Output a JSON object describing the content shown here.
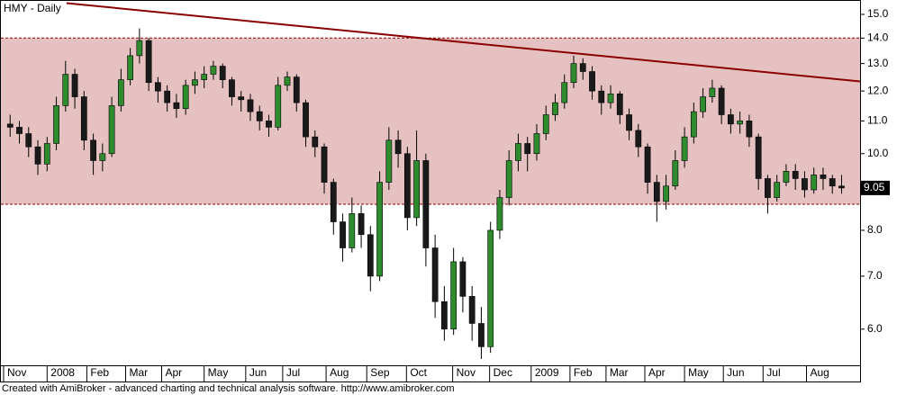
{
  "chart_data": {
    "type": "candlestick",
    "title": "HMY - Daily",
    "footer": "Created with AmiBroker - advanced charting and technical analysis software. http://www.amibroker.com",
    "log_scale": true,
    "grid": false,
    "up_color": "#2e8b2e",
    "down_color": "#1a1a1a",
    "ylim": [
      5.4,
      15.6
    ],
    "yticks": [
      {
        "value": 6,
        "label": "6.0"
      },
      {
        "value": 7,
        "label": "7.0"
      },
      {
        "value": 8,
        "label": "8.0"
      },
      {
        "value": 9,
        "label": "9.0"
      },
      {
        "value": 10,
        "label": "10.0"
      },
      {
        "value": 11,
        "label": "11.0"
      },
      {
        "value": 12,
        "label": "12.0"
      },
      {
        "value": 13,
        "label": "13.0"
      },
      {
        "value": 14,
        "label": "14.0"
      },
      {
        "value": 15,
        "label": "15.0"
      }
    ],
    "xlim": [
      -1,
      92
    ],
    "xticks": [
      {
        "value": -0.8,
        "label": "Nov"
      },
      {
        "value": 4,
        "label": "2008"
      },
      {
        "value": 8.3,
        "label": "Feb"
      },
      {
        "value": 12.5,
        "label": "Mar"
      },
      {
        "value": 16.4,
        "label": "Apr"
      },
      {
        "value": 21,
        "label": "May"
      },
      {
        "value": 25.5,
        "label": "Jun"
      },
      {
        "value": 29.5,
        "label": "Jul"
      },
      {
        "value": 34.2,
        "label": "Aug"
      },
      {
        "value": 38.6,
        "label": "Sep"
      },
      {
        "value": 42.9,
        "label": "Oct"
      },
      {
        "value": 47.9,
        "label": "Nov"
      },
      {
        "value": 51.9,
        "label": "Dec"
      },
      {
        "value": 56.4,
        "label": "2009"
      },
      {
        "value": 60.6,
        "label": "Feb"
      },
      {
        "value": 64.5,
        "label": "Mar"
      },
      {
        "value": 68.7,
        "label": "Apr"
      },
      {
        "value": 73,
        "label": "May"
      },
      {
        "value": 77.2,
        "label": "Jun"
      },
      {
        "value": 81.5,
        "label": "Jul"
      },
      {
        "value": 86.2,
        "label": "Aug"
      }
    ],
    "band": {
      "low": 8.63,
      "high": 14.0,
      "color": "#e6c1c1"
    },
    "trendline": {
      "x": [
        6.1,
        92
      ],
      "y": [
        15.5,
        12.34
      ],
      "color": "#8b0000"
    },
    "open": [
      10.9,
      10.8,
      10.6,
      10.2,
      9.7,
      10.3,
      11.5,
      12.6,
      11.8,
      10.4,
      9.8,
      10.0,
      11.5,
      12.4,
      13.3,
      13.9,
      12.3,
      12.0,
      11.6,
      11.4,
      12.2,
      12.4,
      12.6,
      12.9,
      12.4,
      11.8,
      11.7,
      11.3,
      11.0,
      10.8,
      12.2,
      12.5,
      11.6,
      10.5,
      10.2,
      9.2,
      8.2,
      7.6,
      8.4,
      7.9,
      7.0,
      9.2,
      10.4,
      10.0,
      8.3,
      9.8,
      7.6,
      6.5,
      6.0,
      7.3,
      6.6,
      6.1,
      5.7,
      8.0,
      8.8,
      9.8,
      10.3,
      10.0,
      10.6,
      11.2,
      11.6,
      12.3,
      13.0,
      12.7,
      12.0,
      11.6,
      11.9,
      11.2,
      10.7,
      10.2,
      9.2,
      8.7,
      9.1,
      9.8,
      10.5,
      11.3,
      11.8,
      12.1,
      11.2,
      10.9,
      11.0,
      10.5,
      9.3,
      8.8,
      9.2,
      9.5,
      9.3,
      9.0,
      9.4,
      9.3,
      9.1
    ],
    "high": [
      11.2,
      11.0,
      10.8,
      10.4,
      10.5,
      11.8,
      13.1,
      12.8,
      12.0,
      10.6,
      10.3,
      11.8,
      12.8,
      13.6,
      14.4,
      14.0,
      12.5,
      12.2,
      11.9,
      12.4,
      12.7,
      12.9,
      13.1,
      13.0,
      12.5,
      12.0,
      11.9,
      11.5,
      11.2,
      12.5,
      12.7,
      12.6,
      11.7,
      10.7,
      10.3,
      9.3,
      8.4,
      8.8,
      8.6,
      8.1,
      9.5,
      10.8,
      10.7,
      10.2,
      10.7,
      10.0,
      7.9,
      6.8,
      7.6,
      7.4,
      6.8,
      6.4,
      8.2,
      9.0,
      10.1,
      10.6,
      10.5,
      10.9,
      11.5,
      11.9,
      12.6,
      13.3,
      13.2,
      12.9,
      12.2,
      12.2,
      12.0,
      11.4,
      10.9,
      10.3,
      9.4,
      9.4,
      10.1,
      10.8,
      11.6,
      12.1,
      12.4,
      12.2,
      11.4,
      11.3,
      11.2,
      10.6,
      9.4,
      9.4,
      9.7,
      9.7,
      9.5,
      9.6,
      9.6,
      9.4,
      9.4
    ],
    "low": [
      10.5,
      10.3,
      9.9,
      9.4,
      9.5,
      10.1,
      11.3,
      11.4,
      10.1,
      9.4,
      9.5,
      9.9,
      11.3,
      12.2,
      13.0,
      12.0,
      11.6,
      11.3,
      11.1,
      11.2,
      11.9,
      12.1,
      12.4,
      12.1,
      11.5,
      11.3,
      11.0,
      10.7,
      10.5,
      10.7,
      12.0,
      11.3,
      10.2,
      9.9,
      8.9,
      7.9,
      7.3,
      7.5,
      7.6,
      6.7,
      6.9,
      9.0,
      9.6,
      8.0,
      8.1,
      7.2,
      6.2,
      5.8,
      5.9,
      6.3,
      5.8,
      5.5,
      5.6,
      7.8,
      8.6,
      9.5,
      9.5,
      9.8,
      10.4,
      11.0,
      11.4,
      12.1,
      12.4,
      11.7,
      11.2,
      11.4,
      10.9,
      10.4,
      9.9,
      8.9,
      8.2,
      8.5,
      9.0,
      9.6,
      10.3,
      11.1,
      11.6,
      10.9,
      10.6,
      10.6,
      10.2,
      9.0,
      8.4,
      8.7,
      9.1,
      9.0,
      8.8,
      8.9,
      9.0,
      8.9,
      8.9
    ],
    "close": [
      10.8,
      10.6,
      10.2,
      9.7,
      10.3,
      11.5,
      12.6,
      11.8,
      10.4,
      9.8,
      10.0,
      11.5,
      12.4,
      13.3,
      13.9,
      12.3,
      12.0,
      11.6,
      11.4,
      12.2,
      12.4,
      12.6,
      12.9,
      12.4,
      11.8,
      11.7,
      11.3,
      11.0,
      10.8,
      12.2,
      12.5,
      11.6,
      10.5,
      10.2,
      9.2,
      8.2,
      7.6,
      8.4,
      7.9,
      7.0,
      9.2,
      10.4,
      10.0,
      8.3,
      9.8,
      7.6,
      6.5,
      6.0,
      7.3,
      6.6,
      6.1,
      5.7,
      8.0,
      8.8,
      9.8,
      10.3,
      10.0,
      10.6,
      11.2,
      11.6,
      12.3,
      13.0,
      12.7,
      12.0,
      11.6,
      11.9,
      11.2,
      10.7,
      10.2,
      9.2,
      8.7,
      9.1,
      9.8,
      10.5,
      11.3,
      11.8,
      12.1,
      11.2,
      10.9,
      11.0,
      10.5,
      9.3,
      8.8,
      9.2,
      9.5,
      9.3,
      9.0,
      9.4,
      9.3,
      9.1,
      9.05
    ]
  }
}
